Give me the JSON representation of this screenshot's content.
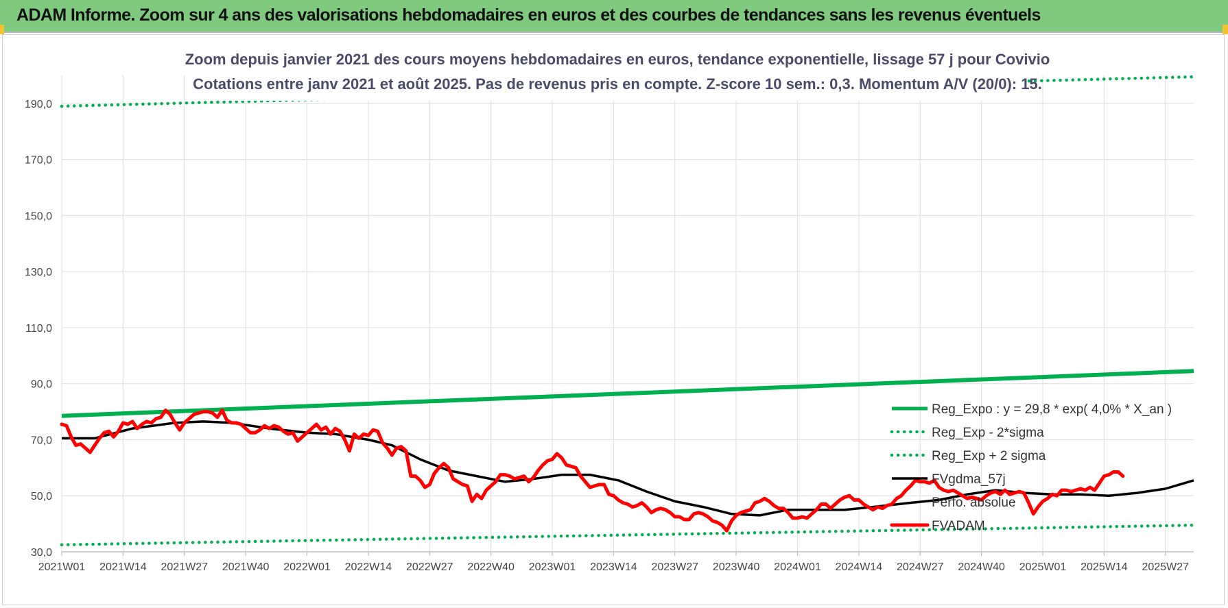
{
  "header": {
    "title": "ADAM Informe. Zoom sur 4 ans des valorisations hebdomadaires en euros et des courbes de tendances sans les revenus éventuels"
  },
  "colors": {
    "header_bg": "#7fca7f",
    "reg_expo": "#00b050",
    "sigma": "#00b050",
    "fvgdma": "#000000",
    "fvadam": "#ff0000"
  },
  "chart_data": {
    "type": "line",
    "title_lines": [
      "Zoom depuis janvier 2021 des cours moyens hebdomadaires en euros, tendance exponentielle, lissage 57 j pour Covivio",
      "Cotations entre janv 2021 et août 2025.  Pas de revenus pris en compte. Z-score 10 sem.: 0,3. Momentum A/V (20/0): 15."
    ],
    "ylim": [
      30,
      200
    ],
    "yticks": [
      {
        "value": 30,
        "label": "30,0"
      },
      {
        "value": 50,
        "label": "50,0"
      },
      {
        "value": 70,
        "label": "70,0"
      },
      {
        "value": 90,
        "label": "90,0"
      },
      {
        "value": 110,
        "label": "110,0"
      },
      {
        "value": 130,
        "label": "130,0"
      },
      {
        "value": 150,
        "label": "150,0"
      },
      {
        "value": 170,
        "label": "170,0"
      },
      {
        "value": 190,
        "label": "190,0"
      }
    ],
    "x_count": 241,
    "xticks": [
      {
        "index": 0,
        "label": "2021W01"
      },
      {
        "index": 13,
        "label": "2021W14"
      },
      {
        "index": 26,
        "label": "2021W27"
      },
      {
        "index": 39,
        "label": "2021W40"
      },
      {
        "index": 52,
        "label": "2022W01"
      },
      {
        "index": 65,
        "label": "2022W14"
      },
      {
        "index": 78,
        "label": "2022W27"
      },
      {
        "index": 91,
        "label": "2022W40"
      },
      {
        "index": 104,
        "label": "2023W01"
      },
      {
        "index": 117,
        "label": "2023W14"
      },
      {
        "index": 130,
        "label": "2023W27"
      },
      {
        "index": 143,
        "label": "2023W40"
      },
      {
        "index": 156,
        "label": "2024W01"
      },
      {
        "index": 169,
        "label": "2024W14"
      },
      {
        "index": 182,
        "label": "2024W27"
      },
      {
        "index": 195,
        "label": "2024W40"
      },
      {
        "index": 208,
        "label": "2025W01"
      },
      {
        "index": 221,
        "label": "2025W14"
      },
      {
        "index": 234,
        "label": "2025W27"
      }
    ],
    "series": [
      {
        "name": "Reg_Expo : y = 29,8 * exp( 4,0% *  X_an )",
        "style": "solid-thick",
        "points": [
          [
            0,
            78.5
          ],
          [
            240,
            94.5
          ]
        ]
      },
      {
        "name": "Reg_Exp - 2*sigma",
        "style": "dotted",
        "points": [
          [
            0,
            32.5
          ],
          [
            240,
            39.5
          ]
        ]
      },
      {
        "name": "Reg_Exp + 2 sigma",
        "style": "dotted",
        "points": [
          [
            0,
            189
          ],
          [
            240,
            199.5
          ]
        ]
      },
      {
        "name": "FVgdma_57j",
        "style": "solid",
        "points": [
          [
            0,
            70.5
          ],
          [
            7,
            70.5
          ],
          [
            15,
            74
          ],
          [
            24,
            76
          ],
          [
            30,
            76.5
          ],
          [
            36,
            76
          ],
          [
            44,
            74
          ],
          [
            52,
            72.5
          ],
          [
            58,
            72
          ],
          [
            65,
            70
          ],
          [
            70,
            68
          ],
          [
            76,
            63
          ],
          [
            82,
            59
          ],
          [
            88,
            57
          ],
          [
            94,
            55
          ],
          [
            100,
            56
          ],
          [
            106,
            57.5
          ],
          [
            112,
            57.5
          ],
          [
            118,
            55.5
          ],
          [
            124,
            51.5
          ],
          [
            130,
            48
          ],
          [
            136,
            46
          ],
          [
            142,
            43.5
          ],
          [
            148,
            43
          ],
          [
            154,
            45
          ],
          [
            160,
            45
          ],
          [
            166,
            45
          ],
          [
            172,
            46
          ],
          [
            180,
            47.5
          ],
          [
            186,
            48.5
          ],
          [
            192,
            50.5
          ],
          [
            198,
            52
          ],
          [
            204,
            51
          ],
          [
            210,
            50.5
          ],
          [
            216,
            50.5
          ],
          [
            222,
            50
          ],
          [
            228,
            51
          ],
          [
            234,
            52.5
          ],
          [
            240,
            55.5
          ]
        ]
      },
      {
        "name": "Perfo. absolue",
        "style": "hidden",
        "points": []
      },
      {
        "name": "FVADAM",
        "style": "solid-red",
        "points": [
          [
            0,
            75.5
          ],
          [
            1,
            75
          ],
          [
            2,
            71
          ],
          [
            3,
            68
          ],
          [
            4,
            68.5
          ],
          [
            5,
            67
          ],
          [
            6,
            65.5
          ],
          [
            7,
            68
          ],
          [
            8,
            70.5
          ],
          [
            9,
            72.5
          ],
          [
            10,
            73
          ],
          [
            11,
            71
          ],
          [
            12,
            73
          ],
          [
            13,
            76
          ],
          [
            14,
            75.5
          ],
          [
            15,
            76.5
          ],
          [
            16,
            74
          ],
          [
            17,
            75.5
          ],
          [
            18,
            76.5
          ],
          [
            19,
            76
          ],
          [
            20,
            77.5
          ],
          [
            21,
            78
          ],
          [
            22,
            80.5
          ],
          [
            23,
            79
          ],
          [
            24,
            76
          ],
          [
            25,
            73.5
          ],
          [
            26,
            76
          ],
          [
            27,
            77.5
          ],
          [
            28,
            79
          ],
          [
            29,
            79.5
          ],
          [
            30,
            80
          ],
          [
            31,
            80
          ],
          [
            32,
            79.5
          ],
          [
            33,
            78
          ],
          [
            34,
            80.5
          ],
          [
            35,
            77
          ],
          [
            36,
            76
          ],
          [
            37,
            76
          ],
          [
            38,
            75.5
          ],
          [
            39,
            74
          ],
          [
            40,
            72.5
          ],
          [
            41,
            72.5
          ],
          [
            42,
            73.5
          ],
          [
            43,
            75
          ],
          [
            44,
            74
          ],
          [
            45,
            75
          ],
          [
            46,
            74.5
          ],
          [
            47,
            73
          ],
          [
            48,
            72
          ],
          [
            49,
            72.5
          ],
          [
            50,
            69.5
          ],
          [
            51,
            71
          ],
          [
            52,
            72.5
          ],
          [
            53,
            74
          ],
          [
            54,
            75.5
          ],
          [
            55,
            73.5
          ],
          [
            56,
            74.5
          ],
          [
            57,
            72
          ],
          [
            58,
            74
          ],
          [
            59,
            73
          ],
          [
            60,
            70
          ],
          [
            61,
            66
          ],
          [
            62,
            72
          ],
          [
            63,
            70.5
          ],
          [
            64,
            72
          ],
          [
            65,
            71.5
          ],
          [
            66,
            73.5
          ],
          [
            67,
            73
          ],
          [
            68,
            69
          ],
          [
            69,
            67
          ],
          [
            70,
            64.5
          ],
          [
            71,
            67
          ],
          [
            72,
            67.5
          ],
          [
            73,
            66
          ],
          [
            74,
            57
          ],
          [
            75,
            57
          ],
          [
            76,
            55.5
          ],
          [
            77,
            53
          ],
          [
            78,
            54
          ],
          [
            79,
            58
          ],
          [
            80,
            60
          ],
          [
            81,
            61.5
          ],
          [
            82,
            60
          ],
          [
            83,
            56
          ],
          [
            84,
            55
          ],
          [
            85,
            54
          ],
          [
            86,
            53.5
          ],
          [
            87,
            48
          ],
          [
            88,
            50.5
          ],
          [
            89,
            49
          ],
          [
            90,
            52
          ],
          [
            91,
            53.5
          ],
          [
            92,
            55
          ],
          [
            93,
            57.5
          ],
          [
            94,
            57.5
          ],
          [
            95,
            57
          ],
          [
            96,
            56
          ],
          [
            97,
            56.5
          ],
          [
            98,
            57
          ],
          [
            99,
            55
          ],
          [
            100,
            56.5
          ],
          [
            101,
            59
          ],
          [
            102,
            61
          ],
          [
            103,
            62.5
          ],
          [
            104,
            63
          ],
          [
            105,
            65
          ],
          [
            106,
            63.5
          ],
          [
            107,
            61
          ],
          [
            108,
            60.5
          ],
          [
            109,
            60
          ],
          [
            110,
            57
          ],
          [
            111,
            55
          ],
          [
            112,
            53
          ],
          [
            113,
            53.5
          ],
          [
            114,
            54
          ],
          [
            115,
            54
          ],
          [
            116,
            50.5
          ],
          [
            117,
            50
          ],
          [
            118,
            48.5
          ],
          [
            119,
            47.5
          ],
          [
            120,
            47
          ],
          [
            121,
            46
          ],
          [
            122,
            46.5
          ],
          [
            123,
            47.5
          ],
          [
            124,
            46
          ],
          [
            125,
            44
          ],
          [
            126,
            45
          ],
          [
            127,
            45.5
          ],
          [
            128,
            45
          ],
          [
            129,
            44
          ],
          [
            130,
            42.5
          ],
          [
            131,
            42.5
          ],
          [
            132,
            41.5
          ],
          [
            133,
            41.5
          ],
          [
            134,
            43.5
          ],
          [
            135,
            44
          ],
          [
            136,
            43.5
          ],
          [
            137,
            42.5
          ],
          [
            138,
            41
          ],
          [
            139,
            40.5
          ],
          [
            140,
            39.5
          ],
          [
            141,
            37.5
          ],
          [
            142,
            41
          ],
          [
            143,
            43
          ],
          [
            144,
            44
          ],
          [
            145,
            44.5
          ],
          [
            146,
            45
          ],
          [
            147,
            47.5
          ],
          [
            148,
            48
          ],
          [
            149,
            49
          ],
          [
            150,
            48
          ],
          [
            151,
            46.5
          ],
          [
            152,
            45.5
          ],
          [
            153,
            45.5
          ],
          [
            154,
            44
          ],
          [
            155,
            42
          ],
          [
            156,
            42
          ],
          [
            157,
            42.5
          ],
          [
            158,
            42
          ],
          [
            159,
            43.5
          ],
          [
            160,
            45
          ],
          [
            161,
            47
          ],
          [
            162,
            47
          ],
          [
            163,
            45.5
          ],
          [
            164,
            47
          ],
          [
            165,
            48.5
          ],
          [
            166,
            49.5
          ],
          [
            167,
            50
          ],
          [
            168,
            48.5
          ],
          [
            169,
            48.5
          ],
          [
            170,
            47
          ],
          [
            171,
            46
          ],
          [
            172,
            45
          ],
          [
            173,
            46
          ],
          [
            174,
            45.5
          ],
          [
            175,
            46.5
          ],
          [
            176,
            47
          ],
          [
            177,
            49
          ],
          [
            178,
            50
          ],
          [
            179,
            52
          ],
          [
            180,
            53.5
          ],
          [
            181,
            55.5
          ],
          [
            182,
            55
          ],
          [
            183,
            55
          ],
          [
            184,
            54.5
          ],
          [
            185,
            55.5
          ],
          [
            186,
            53
          ],
          [
            187,
            52
          ],
          [
            188,
            51.5
          ],
          [
            189,
            52
          ],
          [
            190,
            51
          ],
          [
            191,
            50
          ],
          [
            192,
            49
          ],
          [
            193,
            49.5
          ],
          [
            194,
            49
          ],
          [
            195,
            48.5
          ],
          [
            196,
            50
          ],
          [
            197,
            51
          ],
          [
            198,
            51.5
          ],
          [
            199,
            50.5
          ],
          [
            200,
            52
          ],
          [
            201,
            50.5
          ],
          [
            202,
            51
          ],
          [
            203,
            51.5
          ],
          [
            204,
            51
          ],
          [
            205,
            47.5
          ],
          [
            206,
            43.5
          ],
          [
            207,
            46
          ],
          [
            208,
            48
          ],
          [
            209,
            49
          ],
          [
            210,
            50.5
          ],
          [
            211,
            50
          ],
          [
            212,
            52
          ],
          [
            213,
            52
          ],
          [
            214,
            51.5
          ],
          [
            215,
            52
          ],
          [
            216,
            52.5
          ],
          [
            217,
            52
          ],
          [
            218,
            53
          ],
          [
            219,
            52
          ],
          [
            220,
            54.5
          ],
          [
            221,
            57
          ],
          [
            222,
            57.5
          ],
          [
            223,
            58.5
          ],
          [
            224,
            58.5
          ],
          [
            225,
            57
          ]
        ]
      }
    ],
    "legend_position": "right",
    "grid": true
  }
}
